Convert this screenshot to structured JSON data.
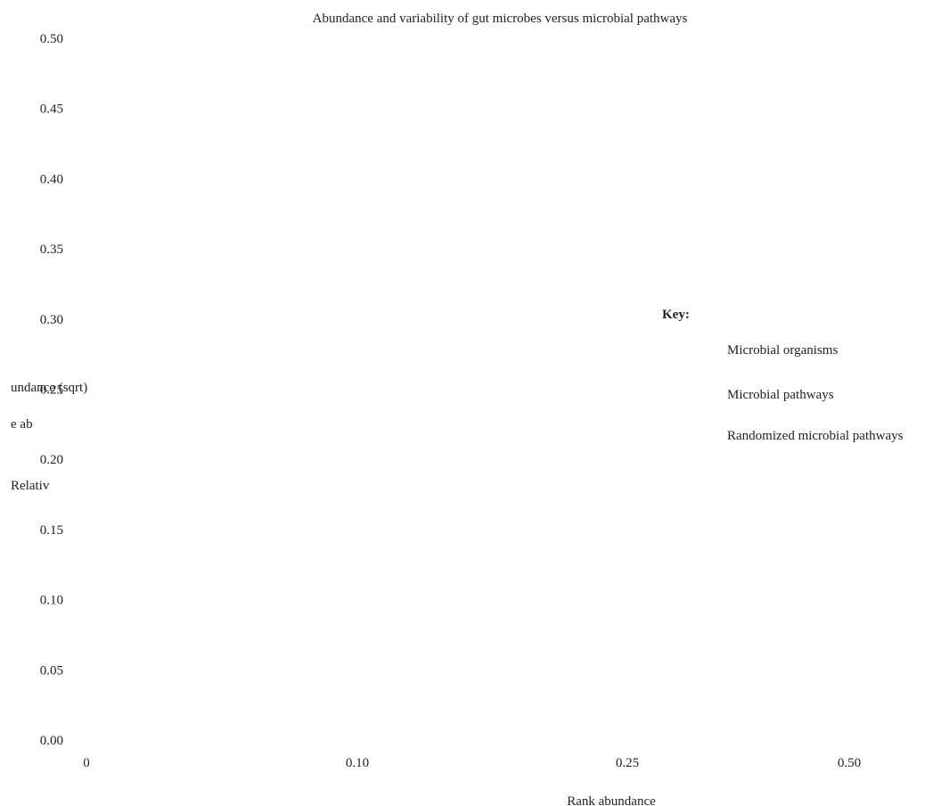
{
  "chart_data": {
    "type": "scatter",
    "title": "Abundance and variability of gut microbes versus microbial pathways",
    "xlabel": "Rank abundance",
    "ylabel": "Relative abundance (sqrt)",
    "ylabel_lines": [
      "Relativ",
      "e ab",
      "undance (sqrt)"
    ],
    "x_ticks": [
      "0",
      "0.10",
      "0.25",
      "0.50"
    ],
    "y_ticks": [
      0.0,
      0.05,
      0.1,
      0.15,
      0.2,
      0.25,
      0.3,
      0.35,
      0.4,
      0.45,
      0.5
    ],
    "ylim": [
      0,
      0.5
    ],
    "grid": false,
    "legend": {
      "title": "Key:",
      "placement": "right",
      "entries": [
        "Microbial organisms",
        "Microbial pathways",
        "Randomized microbial pathways"
      ]
    },
    "series": [
      {
        "name": "Microbial organisms",
        "values": []
      },
      {
        "name": "Microbial pathways",
        "values": []
      },
      {
        "name": "Randomized microbial pathways",
        "values": []
      }
    ]
  }
}
